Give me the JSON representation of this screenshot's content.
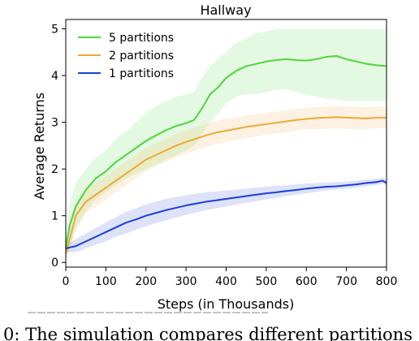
{
  "chart_data": {
    "type": "line",
    "title": "Hallway",
    "xlabel": "Steps (in Thousands)",
    "ylabel": "Average Returns",
    "xlim": [
      0,
      800
    ],
    "ylim": [
      -0.1,
      5.2
    ],
    "xticks": [
      0,
      100,
      200,
      300,
      400,
      500,
      600,
      700,
      800
    ],
    "yticks": [
      0,
      1,
      2,
      3,
      4,
      5
    ],
    "grid": false,
    "legend_position": "top-left",
    "series": [
      {
        "name": "5 partitions",
        "color": "#4cd63a",
        "x": [
          0,
          10,
          25,
          50,
          75,
          100,
          125,
          150,
          175,
          200,
          225,
          250,
          275,
          300,
          320,
          340,
          360,
          380,
          400,
          425,
          450,
          475,
          500,
          525,
          550,
          575,
          600,
          625,
          650,
          675,
          700,
          725,
          750,
          775,
          800
        ],
        "y": [
          0.3,
          0.8,
          1.2,
          1.55,
          1.8,
          1.95,
          2.15,
          2.3,
          2.45,
          2.6,
          2.72,
          2.83,
          2.92,
          2.98,
          3.05,
          3.3,
          3.6,
          3.75,
          3.95,
          4.1,
          4.2,
          4.25,
          4.3,
          4.33,
          4.35,
          4.33,
          4.32,
          4.35,
          4.4,
          4.42,
          4.35,
          4.3,
          4.25,
          4.22,
          4.2
        ],
        "lower": [
          0.1,
          0.3,
          0.7,
          1.1,
          1.35,
          1.5,
          1.65,
          1.8,
          1.9,
          2.0,
          2.1,
          2.2,
          2.3,
          2.4,
          2.5,
          2.75,
          3.0,
          3.2,
          3.4,
          3.55,
          3.6,
          3.6,
          3.65,
          3.7,
          3.7,
          3.65,
          3.6,
          3.55,
          3.5,
          3.5,
          3.45,
          3.45,
          3.45,
          3.45,
          3.45
        ],
        "upper": [
          0.5,
          1.3,
          1.7,
          2.0,
          2.25,
          2.4,
          2.65,
          2.8,
          3.0,
          3.2,
          3.35,
          3.45,
          3.55,
          3.6,
          3.65,
          3.95,
          4.2,
          4.35,
          4.5,
          4.7,
          4.8,
          4.9,
          4.95,
          5.0,
          5.0,
          5.0,
          5.0,
          5.0,
          5.0,
          5.0,
          5.0,
          5.0,
          5.0,
          5.0,
          5.0
        ]
      },
      {
        "name": "2 partitions",
        "color": "#f0a836",
        "x": [
          0,
          10,
          25,
          50,
          75,
          100,
          125,
          150,
          175,
          200,
          225,
          250,
          275,
          300,
          325,
          350,
          375,
          400,
          425,
          450,
          475,
          500,
          525,
          550,
          575,
          600,
          625,
          650,
          675,
          700,
          725,
          750,
          775,
          800
        ],
        "y": [
          0.2,
          0.5,
          1.0,
          1.3,
          1.45,
          1.6,
          1.75,
          1.9,
          2.05,
          2.2,
          2.3,
          2.4,
          2.5,
          2.58,
          2.65,
          2.72,
          2.78,
          2.82,
          2.86,
          2.9,
          2.93,
          2.96,
          2.99,
          3.02,
          3.05,
          3.07,
          3.09,
          3.1,
          3.11,
          3.1,
          3.09,
          3.08,
          3.1,
          3.1
        ],
        "lower": [
          0.05,
          0.3,
          0.75,
          1.05,
          1.2,
          1.35,
          1.5,
          1.65,
          1.8,
          1.95,
          2.05,
          2.15,
          2.25,
          2.33,
          2.4,
          2.47,
          2.53,
          2.58,
          2.62,
          2.66,
          2.7,
          2.73,
          2.76,
          2.79,
          2.82,
          2.85,
          2.85,
          2.86,
          2.87,
          2.86,
          2.85,
          2.85,
          2.87,
          2.87
        ],
        "upper": [
          0.35,
          0.7,
          1.25,
          1.55,
          1.7,
          1.85,
          2.0,
          2.15,
          2.3,
          2.45,
          2.55,
          2.65,
          2.75,
          2.83,
          2.9,
          2.97,
          3.03,
          3.07,
          3.11,
          3.15,
          3.18,
          3.2,
          3.23,
          3.26,
          3.29,
          3.31,
          3.33,
          3.34,
          3.35,
          3.34,
          3.33,
          3.32,
          3.34,
          3.34
        ]
      },
      {
        "name": "1 partitions",
        "color": "#1a3fd6",
        "x": [
          0,
          10,
          25,
          50,
          75,
          100,
          125,
          150,
          175,
          200,
          225,
          250,
          275,
          300,
          325,
          350,
          375,
          400,
          425,
          450,
          475,
          500,
          525,
          550,
          575,
          600,
          625,
          650,
          675,
          700,
          725,
          750,
          775,
          790,
          800
        ],
        "y": [
          0.3,
          0.32,
          0.35,
          0.45,
          0.55,
          0.65,
          0.75,
          0.85,
          0.92,
          1.0,
          1.06,
          1.12,
          1.17,
          1.22,
          1.26,
          1.3,
          1.33,
          1.36,
          1.39,
          1.42,
          1.45,
          1.48,
          1.5,
          1.53,
          1.55,
          1.58,
          1.6,
          1.62,
          1.63,
          1.65,
          1.67,
          1.7,
          1.72,
          1.75,
          1.7
        ],
        "lower": [
          0.2,
          0.22,
          0.22,
          0.3,
          0.38,
          0.45,
          0.55,
          0.62,
          0.7,
          0.77,
          0.84,
          0.9,
          0.96,
          1.02,
          1.07,
          1.12,
          1.16,
          1.2,
          1.24,
          1.28,
          1.31,
          1.35,
          1.38,
          1.42,
          1.45,
          1.48,
          1.51,
          1.54,
          1.56,
          1.58,
          1.6,
          1.63,
          1.66,
          1.68,
          1.64
        ],
        "upper": [
          0.4,
          0.42,
          0.5,
          0.62,
          0.74,
          0.86,
          0.97,
          1.08,
          1.16,
          1.24,
          1.3,
          1.36,
          1.4,
          1.44,
          1.47,
          1.5,
          1.52,
          1.54,
          1.56,
          1.58,
          1.6,
          1.62,
          1.64,
          1.65,
          1.67,
          1.69,
          1.7,
          1.71,
          1.72,
          1.73,
          1.75,
          1.77,
          1.79,
          1.82,
          1.77
        ]
      }
    ]
  },
  "caption": "0: The simulation compares different partitions"
}
